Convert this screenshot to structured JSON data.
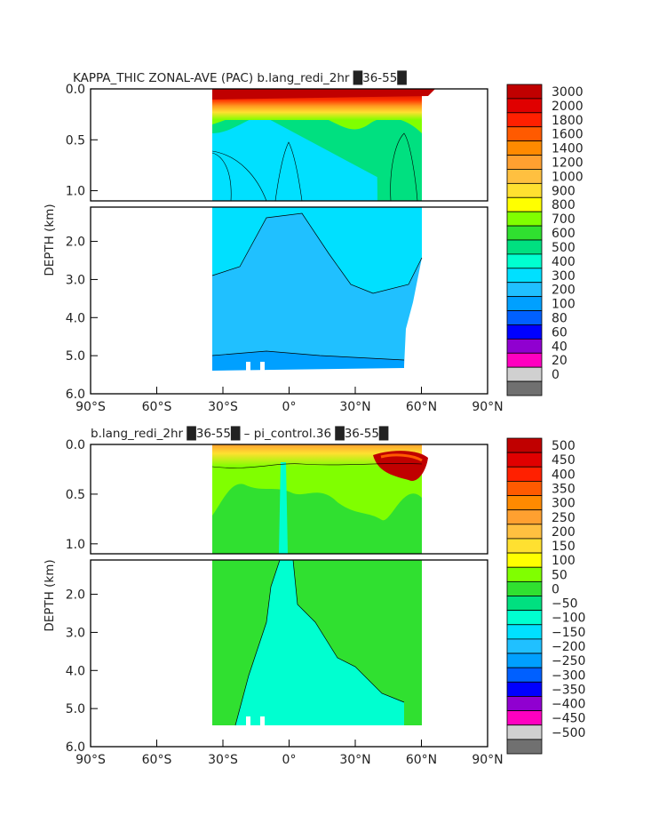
{
  "chart_data": [
    {
      "type": "heatmap",
      "title": "KAPPA_THIC ZONAL-AVE (PAC) b.lang_redi_2hr █36-55█",
      "ylabel": "DEPTH (km)",
      "xlabel": "",
      "x_ticks": [
        "90°S",
        "60°S",
        "30°S",
        "0°",
        "30°N",
        "60°N",
        "90°N"
      ],
      "x_tick_values": [
        -90,
        -60,
        -30,
        0,
        30,
        60,
        90
      ],
      "y_ticks_upper": [
        "0.0",
        "0.5",
        "1.0"
      ],
      "y_ticks_lower": [
        "2.0",
        "3.0",
        "4.0",
        "5.0",
        "6.0"
      ],
      "xlim": [
        -90,
        90
      ],
      "ylim": [
        6.0,
        0.0
      ],
      "colorbar_levels": [
        "3000",
        "2000",
        "1800",
        "1600",
        "1400",
        "1200",
        "1000",
        "900",
        "800",
        "700",
        "600",
        "500",
        "400",
        "300",
        "200",
        "100",
        "80",
        "60",
        "40",
        "20",
        "0"
      ],
      "colorbar_colors": [
        "#c00000",
        "#e00000",
        "#ff2000",
        "#ff5a00",
        "#ff8a00",
        "#ffa030",
        "#ffc040",
        "#ffe030",
        "#ffff00",
        "#80ff00",
        "#30e030",
        "#00e080",
        "#00ffd0",
        "#00e0ff",
        "#20c0ff",
        "#00a0ff",
        "#0060ff",
        "#0000ff",
        "#9000d0",
        "#ff00c0",
        "#d0d0d0",
        "#707070"
      ],
      "data_extent": {
        "lat_min": -34,
        "lat_max": 64,
        "max_depth_km": 5.4
      }
    },
    {
      "type": "heatmap",
      "title": "b.lang_redi_2hr █36-55█ – pi_control.36 █36-55█",
      "ylabel": "DEPTH (km)",
      "xlabel": "",
      "x_ticks": [
        "90°S",
        "60°S",
        "30°S",
        "0°",
        "30°N",
        "60°N",
        "90°N"
      ],
      "x_tick_values": [
        -90,
        -60,
        -30,
        0,
        30,
        60,
        90
      ],
      "y_ticks_upper": [
        "0.0",
        "0.5",
        "1.0"
      ],
      "y_ticks_lower": [
        "2.0",
        "3.0",
        "4.0",
        "5.0",
        "6.0"
      ],
      "xlim": [
        -90,
        90
      ],
      "ylim": [
        6.0,
        0.0
      ],
      "colorbar_levels": [
        "500",
        "450",
        "400",
        "350",
        "300",
        "250",
        "200",
        "150",
        "100",
        "50",
        "0",
        "−50",
        "−100",
        "−150",
        "−200",
        "−250",
        "−300",
        "−350",
        "−400",
        "−450",
        "−500"
      ],
      "colorbar_colors": [
        "#c00000",
        "#e00000",
        "#ff2000",
        "#ff5a00",
        "#ff8a00",
        "#ffa030",
        "#ffc040",
        "#ffe030",
        "#ffff00",
        "#80ff00",
        "#30e030",
        "#00e080",
        "#00ffd0",
        "#00e0ff",
        "#20c0ff",
        "#00a0ff",
        "#0060ff",
        "#0000ff",
        "#9000d0",
        "#ff00c0",
        "#d0d0d0",
        "#707070"
      ],
      "data_extent": {
        "lat_min": -34,
        "lat_max": 64,
        "max_depth_km": 5.4
      }
    }
  ]
}
